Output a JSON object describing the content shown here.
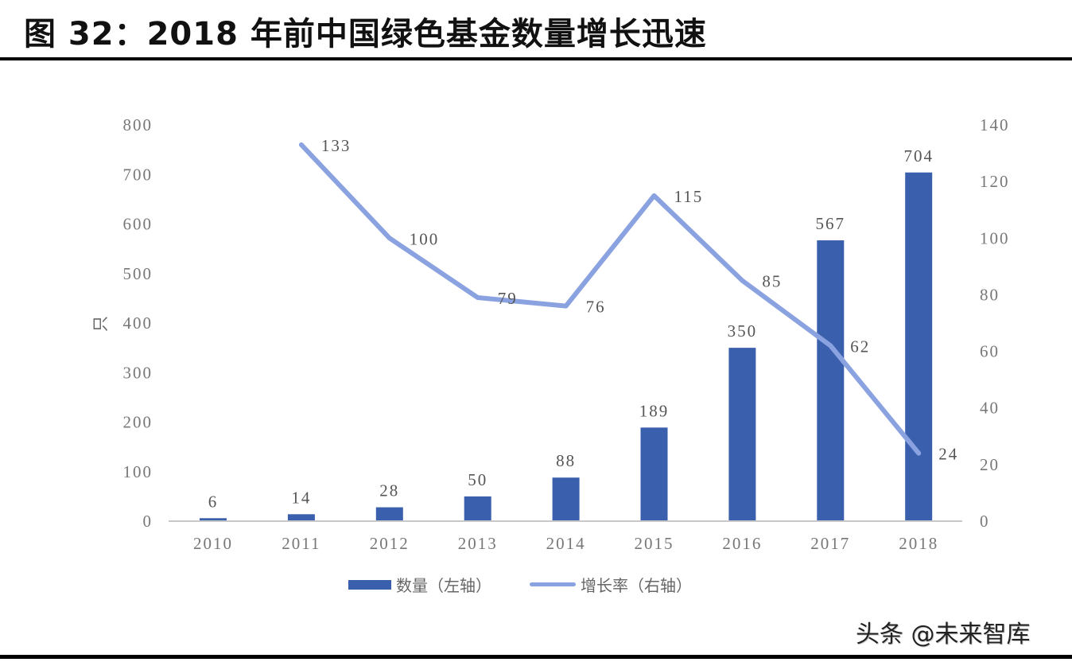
{
  "header": {
    "title": "图 32：2018 年前中国绿色基金数量增长迅速"
  },
  "watermark": "头条 @未来智库",
  "colors": {
    "bar": "#3a5fad",
    "line": "#8aa2e0",
    "axis": "#c8c8c8",
    "tick_text": "#777777",
    "label_text": "#555555"
  },
  "legend": {
    "bar_label": "数量（左轴）",
    "line_label": "增长率（右轴）"
  },
  "chart_data": {
    "type": "bar",
    "title": "图 32：2018 年前中国绿色基金数量增长迅速",
    "categories": [
      "2010",
      "2011",
      "2012",
      "2013",
      "2014",
      "2015",
      "2016",
      "2017",
      "2018"
    ],
    "series": [
      {
        "name": "数量（左轴）",
        "type": "bar",
        "axis": "left",
        "values": [
          6,
          14,
          28,
          50,
          88,
          189,
          350,
          567,
          704
        ]
      },
      {
        "name": "增长率（右轴）",
        "type": "line",
        "axis": "right",
        "values": [
          null,
          133,
          100,
          79,
          76,
          115,
          85,
          62,
          24
        ]
      }
    ],
    "ylabel": "只",
    "xlabel": "",
    "ylim": [
      0,
      800
    ],
    "y_ticks": [
      0,
      100,
      200,
      300,
      400,
      500,
      600,
      700,
      800
    ],
    "y2lim": [
      0,
      140
    ],
    "y2_ticks": [
      0,
      20,
      40,
      60,
      80,
      100,
      120,
      140
    ],
    "grid": false,
    "legend_position": "bottom"
  }
}
